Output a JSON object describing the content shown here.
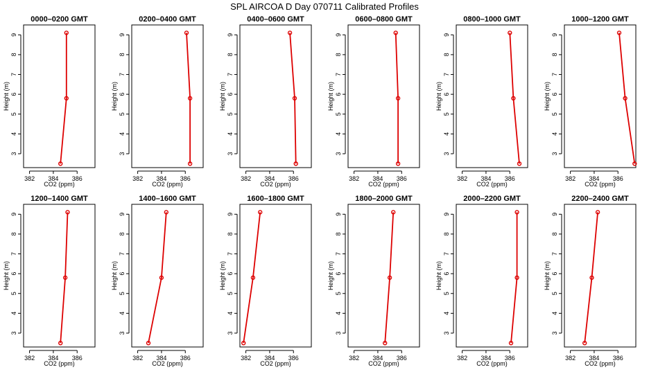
{
  "title": "SPL AIRCOA D  Day 070711  Calibrated Profiles",
  "chart_data": {
    "type": "line",
    "xlabel": "CO2 (ppm)",
    "ylabel": "Height (m)",
    "xlim": [
      381.5,
      387.5
    ],
    "ylim": [
      2.3,
      9.5
    ],
    "xticks": [
      "382",
      "384",
      "386"
    ],
    "yticks": [
      "3",
      "4",
      "5",
      "6",
      "7",
      "8",
      "9"
    ],
    "panels": [
      {
        "title": "0000–0200 GMT",
        "x": [
          384.6,
          385.1,
          385.1
        ],
        "y": [
          2.5,
          5.8,
          9.1
        ]
      },
      {
        "title": "0200–0400 GMT",
        "x": [
          386.4,
          386.4,
          386.1
        ],
        "y": [
          2.5,
          5.8,
          9.1
        ]
      },
      {
        "title": "0400–0600 GMT",
        "x": [
          386.2,
          386.1,
          385.7
        ],
        "y": [
          2.5,
          5.8,
          9.1
        ]
      },
      {
        "title": "0600–0800 GMT",
        "x": [
          385.7,
          385.7,
          385.5
        ],
        "y": [
          2.5,
          5.8,
          9.1
        ]
      },
      {
        "title": "0800–1000 GMT",
        "x": [
          386.8,
          386.3,
          386.0
        ],
        "y": [
          2.5,
          5.8,
          9.1
        ]
      },
      {
        "title": "1000–1200 GMT",
        "x": [
          387.4,
          386.6,
          386.1
        ],
        "y": [
          2.5,
          5.8,
          9.1
        ]
      },
      {
        "title": "1200–1400 GMT",
        "x": [
          384.6,
          385.0,
          385.2
        ],
        "y": [
          2.5,
          5.8,
          9.1
        ]
      },
      {
        "title": "1400–1600 GMT",
        "x": [
          382.9,
          384.0,
          384.4
        ],
        "y": [
          2.5,
          5.8,
          9.1
        ]
      },
      {
        "title": "1600–1800 GMT",
        "x": [
          381.8,
          382.6,
          383.2
        ],
        "y": [
          2.5,
          5.8,
          9.1
        ]
      },
      {
        "title": "1800–2000 GMT",
        "x": [
          384.6,
          385.0,
          385.3
        ],
        "y": [
          2.5,
          5.8,
          9.1
        ]
      },
      {
        "title": "2000–2200 GMT",
        "x": [
          386.1,
          386.6,
          386.6
        ],
        "y": [
          2.5,
          5.8,
          9.1
        ]
      },
      {
        "title": "2200–2400 GMT",
        "x": [
          383.2,
          383.8,
          384.3
        ],
        "y": [
          2.5,
          5.8,
          9.1
        ]
      }
    ]
  },
  "colors": {
    "series": "#dd0000",
    "axis": "#000000"
  }
}
